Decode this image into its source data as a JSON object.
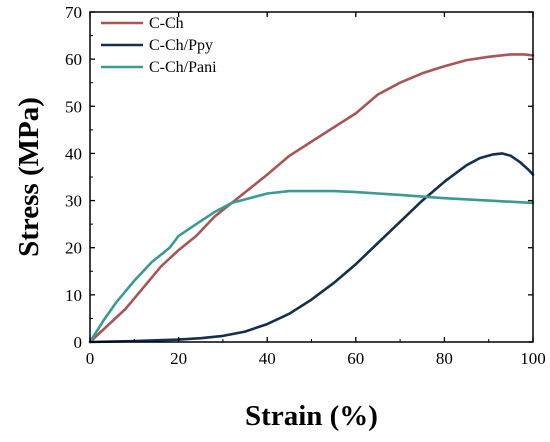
{
  "chart_data": {
    "type": "line",
    "xlabel": "Strain (%)",
    "ylabel": "Stress (MPa)",
    "xlim": [
      0,
      100
    ],
    "ylim": [
      0,
      70
    ],
    "xticks": [
      0,
      20,
      40,
      60,
      80,
      100
    ],
    "yticks": [
      0,
      10,
      20,
      30,
      40,
      50,
      60,
      70
    ],
    "grid": false,
    "legend_position": "top-left",
    "series": [
      {
        "name": "C-Ch",
        "color": "#a85555",
        "x": [
          0,
          4,
          8,
          12,
          16,
          20,
          24,
          28,
          32,
          36,
          40,
          45,
          50,
          55,
          60,
          65,
          70,
          75,
          80,
          85,
          90,
          95,
          98,
          100
        ],
        "y": [
          0,
          3.5,
          7,
          11.5,
          16,
          19.5,
          22.5,
          26.5,
          29.5,
          32.5,
          35.5,
          39.5,
          42.5,
          45.5,
          48.5,
          52.5,
          55,
          57,
          58.5,
          59.8,
          60.5,
          61,
          61,
          60.8
        ]
      },
      {
        "name": "C-Ch/Ppy",
        "color": "#14304e",
        "x": [
          0,
          10,
          20,
          25,
          30,
          35,
          40,
          45,
          50,
          55,
          60,
          65,
          70,
          75,
          80,
          85,
          88,
          91,
          93,
          95,
          97,
          99,
          100
        ],
        "y": [
          0,
          0.2,
          0.5,
          0.8,
          1.3,
          2.2,
          3.8,
          6,
          9,
          12.5,
          16.5,
          21,
          25.5,
          30,
          34,
          37.5,
          39,
          39.8,
          40,
          39.5,
          38.2,
          36.5,
          35.5
        ]
      },
      {
        "name": "C-Ch/Pani",
        "color": "#3a9a94",
        "x": [
          0,
          3,
          6,
          10,
          14,
          18,
          20,
          24,
          28,
          32,
          36,
          40,
          45,
          50,
          55,
          60,
          70,
          80,
          90,
          100
        ],
        "y": [
          0,
          4.5,
          8.5,
          13,
          17,
          20,
          22.5,
          25,
          27.5,
          29.5,
          30.5,
          31.5,
          32,
          32,
          32,
          31.8,
          31.2,
          30.5,
          30,
          29.5
        ]
      }
    ]
  }
}
